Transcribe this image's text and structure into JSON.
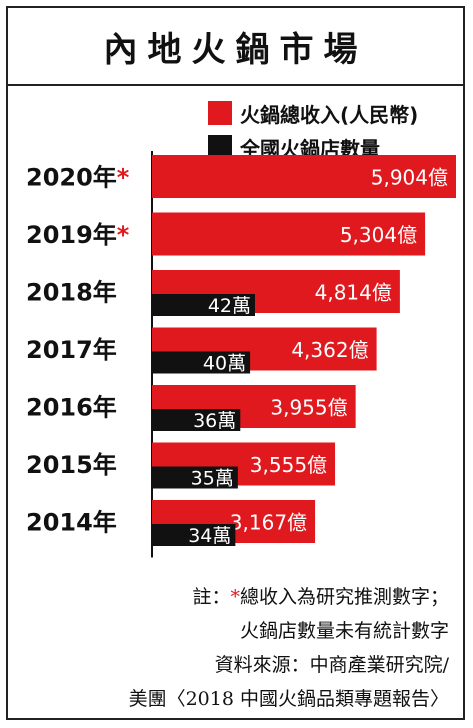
{
  "title": "內地火鍋市場",
  "legend": {
    "revenue_label": "火鍋總收入(人民幣)",
    "stores_label": "全國火鍋店數量"
  },
  "colors": {
    "revenue": "#e0191e",
    "stores": "#111111"
  },
  "notes": {
    "note_prefix": "註：",
    "star": "*",
    "line1_text": "總收入為研究推測數字；",
    "line2": "火鍋店數量未有統計數字",
    "line3": "資料來源：中商產業研究院/",
    "line4": "美團〈2018 中國火鍋品類專題報告〉"
  },
  "chart_data": {
    "type": "bar",
    "orientation": "horizontal",
    "year_suffix": "年",
    "estimate_marker": "*",
    "categories": [
      "2020",
      "2019",
      "2018",
      "2017",
      "2016",
      "2015",
      "2014"
    ],
    "estimated": [
      true,
      true,
      false,
      false,
      false,
      false,
      false
    ],
    "series": [
      {
        "name": "火鍋總收入(人民幣)",
        "values": [
          5904,
          5304,
          4814,
          4362,
          3955,
          3555,
          3167
        ],
        "labels": [
          "5,904億",
          "5,304億",
          "4,814億",
          "4,362億",
          "3,955億",
          "3,555億",
          "3,167億"
        ]
      },
      {
        "name": "全國火鍋店數量",
        "values": [
          null,
          null,
          42,
          40,
          36,
          35,
          34
        ],
        "labels": [
          "",
          "",
          "42萬",
          "40萬",
          "36萬",
          "35萬",
          "34萬"
        ]
      }
    ]
  }
}
